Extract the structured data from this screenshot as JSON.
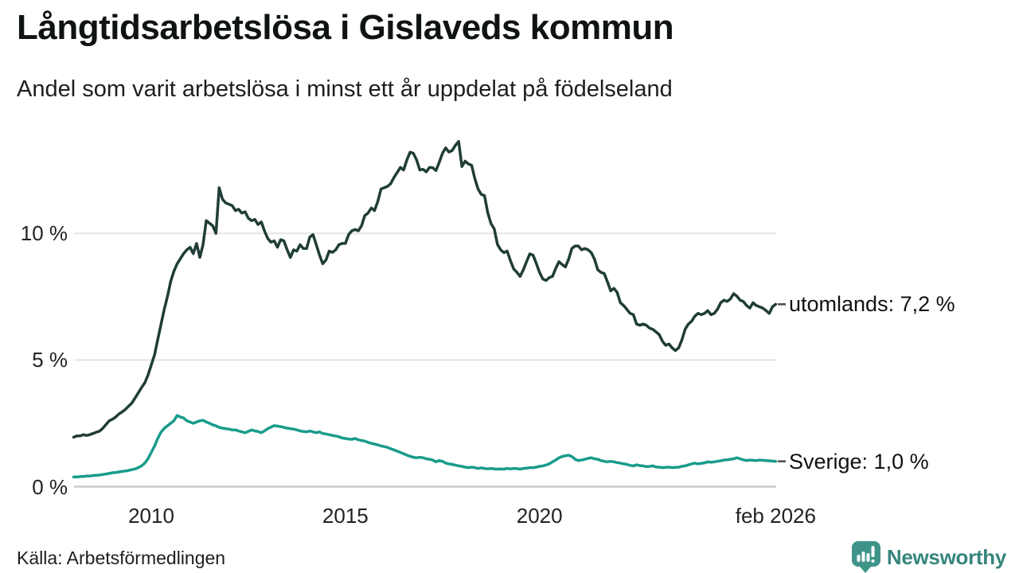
{
  "chart": {
    "title": "Långtidsarbetslösa i Gislaveds kommun",
    "subtitle": "Andel som varit arbetslösa i minst ett år uppdelat på födelseland",
    "y_ticks": [
      {
        "value": 0,
        "label": "0 %"
      },
      {
        "value": 5,
        "label": "5 %"
      },
      {
        "value": 10,
        "label": "10 %"
      }
    ],
    "x_ticks": [
      {
        "year": 2010,
        "label": "2010"
      },
      {
        "year": 2015,
        "label": "2015"
      },
      {
        "year": 2020,
        "label": "2020"
      },
      {
        "year": 2026.083,
        "label": "feb 2026"
      }
    ]
  },
  "chart_data": {
    "type": "line",
    "title": "Långtidsarbetslösa i Gislaveds kommun",
    "subtitle": "Andel som varit arbetslösa i minst ett år uppdelat på födelseland",
    "unit": "%",
    "x_start": "2008-01",
    "x_end": "2026-02",
    "x_interval": "monthly",
    "ylim": [
      0,
      14.2
    ],
    "grid": "horizontal",
    "grid_color": "#e4e4e4",
    "zero_line_color": "#c9c9c9",
    "end_dash_color": "#4a4a4a",
    "series": [
      {
        "name": "utomlands",
        "end_label": "utomlands: 7,2 %",
        "last_value": 7.2,
        "color": "#1f3d36",
        "values": [
          1.95,
          2.0,
          2.0,
          2.05,
          2.02,
          2.05,
          2.1,
          2.15,
          2.19,
          2.3,
          2.45,
          2.6,
          2.66,
          2.75,
          2.87,
          2.95,
          3.05,
          3.18,
          3.3,
          3.5,
          3.7,
          3.91,
          4.1,
          4.4,
          4.8,
          5.2,
          5.8,
          6.4,
          7.0,
          7.5,
          8.1,
          8.5,
          8.8,
          9.0,
          9.2,
          9.35,
          9.45,
          9.2,
          9.6,
          9.05,
          9.55,
          10.5,
          10.4,
          10.3,
          10.0,
          11.8,
          11.35,
          11.2,
          11.15,
          11.1,
          10.9,
          10.95,
          10.8,
          10.85,
          10.6,
          10.5,
          10.55,
          10.35,
          10.45,
          10.1,
          9.8,
          9.65,
          9.7,
          9.45,
          9.75,
          9.7,
          9.35,
          9.05,
          9.35,
          9.3,
          9.55,
          9.4,
          9.4,
          9.85,
          9.95,
          9.55,
          9.15,
          8.8,
          8.95,
          9.3,
          9.25,
          9.35,
          9.55,
          9.6,
          9.6,
          9.95,
          10.1,
          10.15,
          10.1,
          10.3,
          10.7,
          10.8,
          11.0,
          10.9,
          11.25,
          11.75,
          11.8,
          11.85,
          11.96,
          12.2,
          12.4,
          12.6,
          12.5,
          12.9,
          13.2,
          13.16,
          12.9,
          12.5,
          12.53,
          12.43,
          12.6,
          12.59,
          12.48,
          12.8,
          13.16,
          13.37,
          13.21,
          13.27,
          13.47,
          13.63,
          12.64,
          12.85,
          12.74,
          12.69,
          12.17,
          11.75,
          11.54,
          11.49,
          10.81,
          10.39,
          10.18,
          9.56,
          9.35,
          9.24,
          9.3,
          8.93,
          8.6,
          8.46,
          8.3,
          8.56,
          8.88,
          9.19,
          9.14,
          8.82,
          8.46,
          8.2,
          8.14,
          8.25,
          8.3,
          8.61,
          8.88,
          8.77,
          8.67,
          8.98,
          9.4,
          9.5,
          9.5,
          9.35,
          9.4,
          9.35,
          9.24,
          8.98,
          8.56,
          8.46,
          8.41,
          8.09,
          7.73,
          7.83,
          7.67,
          7.26,
          7.15,
          7.0,
          6.84,
          6.79,
          6.42,
          6.37,
          6.42,
          6.37,
          6.26,
          6.21,
          6.11,
          6.0,
          5.74,
          5.58,
          5.63,
          5.48,
          5.37,
          5.48,
          5.79,
          6.21,
          6.42,
          6.53,
          6.73,
          6.84,
          6.79,
          6.84,
          6.95,
          6.79,
          6.84,
          7.0,
          7.26,
          7.36,
          7.31,
          7.41,
          7.62,
          7.52,
          7.36,
          7.31,
          7.15,
          7.05,
          7.26,
          7.15,
          7.1,
          7.05,
          6.95,
          6.84,
          7.1,
          7.2
        ]
      },
      {
        "name": "Sverige",
        "end_label": "Sverige: 1,0 %",
        "last_value": 1.0,
        "color": "#189c8b",
        "values": [
          0.38,
          0.38,
          0.4,
          0.4,
          0.42,
          0.42,
          0.44,
          0.45,
          0.46,
          0.48,
          0.5,
          0.52,
          0.55,
          0.56,
          0.58,
          0.6,
          0.62,
          0.64,
          0.67,
          0.7,
          0.75,
          0.82,
          0.93,
          1.1,
          1.35,
          1.6,
          1.9,
          2.15,
          2.3,
          2.4,
          2.5,
          2.6,
          2.81,
          2.75,
          2.71,
          2.6,
          2.55,
          2.5,
          2.55,
          2.6,
          2.62,
          2.55,
          2.5,
          2.44,
          2.4,
          2.34,
          2.31,
          2.29,
          2.27,
          2.24,
          2.24,
          2.2,
          2.16,
          2.13,
          2.18,
          2.24,
          2.2,
          2.18,
          2.13,
          2.2,
          2.29,
          2.35,
          2.41,
          2.39,
          2.37,
          2.34,
          2.31,
          2.29,
          2.27,
          2.24,
          2.2,
          2.18,
          2.16,
          2.2,
          2.16,
          2.13,
          2.16,
          2.1,
          2.08,
          2.05,
          2.02,
          2.0,
          1.97,
          1.92,
          1.9,
          1.88,
          1.87,
          1.9,
          1.85,
          1.82,
          1.8,
          1.75,
          1.71,
          1.68,
          1.65,
          1.61,
          1.58,
          1.55,
          1.5,
          1.45,
          1.4,
          1.35,
          1.3,
          1.24,
          1.2,
          1.16,
          1.14,
          1.16,
          1.14,
          1.1,
          1.08,
          1.05,
          0.98,
          1.03,
          1.0,
          0.93,
          0.9,
          0.88,
          0.85,
          0.82,
          0.8,
          0.77,
          0.75,
          0.77,
          0.75,
          0.72,
          0.74,
          0.72,
          0.7,
          0.72,
          0.7,
          0.69,
          0.7,
          0.69,
          0.72,
          0.7,
          0.72,
          0.71,
          0.69,
          0.72,
          0.73,
          0.75,
          0.75,
          0.77,
          0.8,
          0.82,
          0.85,
          0.9,
          0.98,
          1.05,
          1.14,
          1.19,
          1.22,
          1.24,
          1.19,
          1.08,
          1.03,
          1.05,
          1.08,
          1.12,
          1.14,
          1.1,
          1.08,
          1.03,
          1.0,
          0.98,
          1.0,
          0.98,
          0.95,
          0.93,
          0.9,
          0.88,
          0.84,
          0.82,
          0.86,
          0.83,
          0.82,
          0.79,
          0.8,
          0.82,
          0.78,
          0.77,
          0.75,
          0.76,
          0.77,
          0.75,
          0.76,
          0.77,
          0.8,
          0.82,
          0.86,
          0.9,
          0.93,
          0.9,
          0.92,
          0.94,
          0.98,
          0.96,
          0.98,
          1.0,
          1.02,
          1.05,
          1.06,
          1.08,
          1.1,
          1.14,
          1.1,
          1.06,
          1.03,
          1.05,
          1.04,
          1.03,
          1.05,
          1.04,
          1.03,
          1.02,
          1.01,
          1.0
        ]
      }
    ]
  },
  "footer": {
    "source": "Källa: Arbetsförmedlingen",
    "logo_text": "Newsworthy",
    "logo_text_color": "#35867c",
    "logo_badge_color": "#3f948a"
  },
  "icons": {
    "logo_badge": "bar-chart-pin-icon"
  }
}
